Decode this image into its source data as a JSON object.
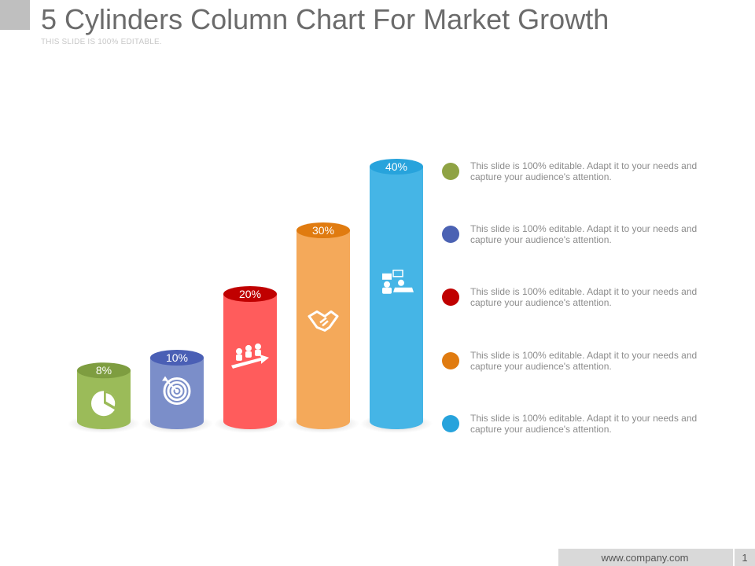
{
  "slide": {
    "title": "5 Cylinders Column Chart For Market Growth",
    "subtitle": "THIS SLIDE IS 100% EDITABLE."
  },
  "chart_data": {
    "type": "bar",
    "style": "3d-cylinder",
    "categories": [
      "",
      "",
      "",
      "",
      ""
    ],
    "values": [
      8,
      10,
      20,
      30,
      40
    ],
    "data_labels": [
      "8%",
      "10%",
      "20%",
      "30%",
      "40%"
    ],
    "colors": [
      "#9bbb59",
      "#7b8ec9",
      "#ff5c5c",
      "#f4a95a",
      "#45b5e6"
    ],
    "top_colors": [
      "#7e9d40",
      "#4a5fb5",
      "#c00000",
      "#e07b10",
      "#27a3dc"
    ],
    "icons": [
      "pie-chart-icon",
      "target-icon",
      "team-growth-arrow-icon",
      "handshake-icon",
      "presentation-icon"
    ],
    "title": "",
    "xlabel": "",
    "ylabel": ""
  },
  "legend": {
    "items": [
      {
        "color": "#8fa344",
        "text": "This slide is 100% editable. Adapt it to your needs and capture your audience's attention."
      },
      {
        "color": "#4b62b3",
        "text": "This slide is 100% editable. Adapt it to your needs and capture your audience's attention."
      },
      {
        "color": "#c00000",
        "text": "This slide is 100% editable. Adapt it to your needs and capture your audience's attention."
      },
      {
        "color": "#e07b10",
        "text": "This slide is 100% editable. Adapt it to your needs and capture your audience's attention."
      },
      {
        "color": "#27a3dc",
        "text": "This slide is 100% editable. Adapt it to your needs and capture your audience's attention."
      }
    ]
  },
  "footer": {
    "url": "www.company.com",
    "page": "1"
  }
}
